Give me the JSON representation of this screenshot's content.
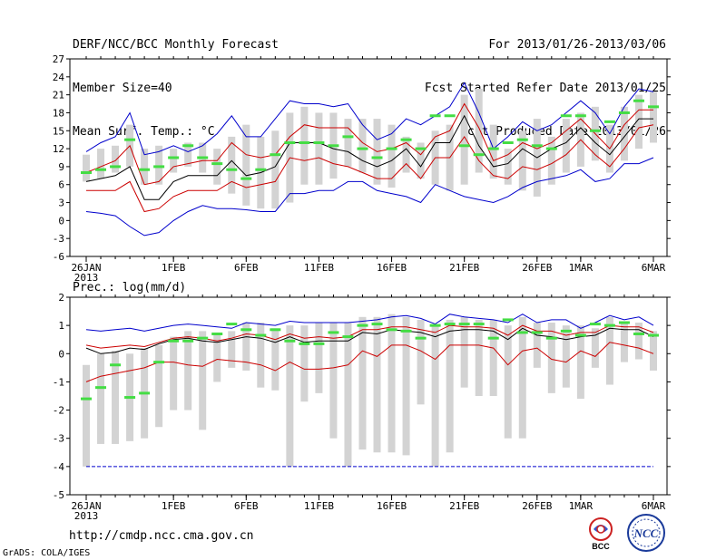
{
  "header": {
    "left_line1": "DERF/NCC/BCC Monthly Forecast",
    "left_line2": "Member Size=40",
    "left_line3": "Mean Surf. Temp.: °C",
    "right_line1": "For 2013/01/26-2013/03/06",
    "right_line2": "Fcst Started Refer Date 2013/01/25",
    "right_line3": "Fcst Produced Date 2013/01/26"
  },
  "footer": {
    "url": "http://cmdp.ncc.cma.gov.cn",
    "credit": "GrADS: COLA/IGES",
    "logo1": "BCC",
    "logo2": "NCC"
  },
  "colors": {
    "box": "#d3d3d3",
    "envelope": "#0000cc",
    "spread": "#cc0000",
    "mean": "#000000",
    "obs": "#44dd44"
  },
  "chart_data": [
    {
      "type": "ensemble-box",
      "title": "Mean Surf. Temp.: °C",
      "ylim": [
        -6,
        27
      ],
      "yticks": [
        -6,
        -3,
        0,
        3,
        6,
        9,
        12,
        15,
        18,
        21,
        24,
        27
      ],
      "xticks": [
        {
          "day": 0,
          "label": "26JAN",
          "sub": "2013"
        },
        {
          "day": 6,
          "label": "1FEB"
        },
        {
          "day": 11,
          "label": "6FEB"
        },
        {
          "day": 16,
          "label": "11FEB"
        },
        {
          "day": 21,
          "label": "16FEB"
        },
        {
          "day": 26,
          "label": "21FEB"
        },
        {
          "day": 31,
          "label": "26FEB"
        },
        {
          "day": 34,
          "label": "1MAR"
        },
        {
          "day": 39,
          "label": "6MAR"
        }
      ],
      "box_low": [
        6.5,
        7,
        8,
        9,
        6,
        6,
        8,
        9,
        8,
        6,
        4.5,
        2.5,
        2,
        2,
        3,
        6,
        6,
        7,
        9,
        8,
        6,
        5.5,
        8,
        7,
        6,
        5,
        6,
        8,
        7,
        6,
        5,
        4,
        6,
        8,
        9,
        10,
        8,
        10,
        12,
        13
      ],
      "box_high": [
        11,
        12,
        12.5,
        16,
        12,
        12.5,
        12,
        13,
        13,
        12,
        14,
        16,
        14,
        15,
        18,
        19,
        18,
        18,
        17,
        17,
        17,
        16,
        14,
        13,
        15,
        16,
        21,
        22,
        16,
        12,
        15,
        17,
        14,
        17,
        18,
        19,
        16,
        19,
        21,
        21.5
      ],
      "upper_env": [
        11.5,
        13,
        14,
        18,
        11,
        11.5,
        12.5,
        11.5,
        12.5,
        14.5,
        17.5,
        14,
        14,
        17,
        20,
        19.5,
        19.5,
        19,
        19.5,
        16,
        13.5,
        14.5,
        17,
        16,
        17.5,
        19,
        23,
        18,
        12,
        14,
        16.5,
        15,
        16,
        18,
        20,
        18,
        14.5,
        19,
        22,
        21.5
      ],
      "upper_spr": [
        8,
        9,
        10,
        12.5,
        6,
        6.5,
        9,
        9.5,
        10,
        10,
        13,
        11,
        10.5,
        11,
        14,
        16,
        15.5,
        15.5,
        15.5,
        13,
        11.5,
        12,
        13,
        11,
        14,
        15,
        19.5,
        15.5,
        10,
        11,
        13,
        12,
        13,
        15,
        17,
        14.5,
        12,
        16,
        18.5,
        18.5
      ],
      "mean": [
        6.5,
        7,
        7.5,
        9,
        3.5,
        3.5,
        6.5,
        7.5,
        7.5,
        7.5,
        10,
        7.5,
        8,
        9,
        13,
        13,
        13,
        12,
        11.5,
        10,
        9,
        10,
        12,
        9,
        13,
        13,
        17.5,
        12.5,
        9,
        9.5,
        12,
        10.5,
        12,
        13,
        15.5,
        13,
        11,
        14,
        17,
        17
      ],
      "lower_spr": [
        5,
        5,
        5,
        6.5,
        1.5,
        2,
        4,
        5,
        5,
        5,
        6.5,
        5.5,
        6,
        6.5,
        10.5,
        10,
        10.5,
        9.5,
        9,
        8,
        7,
        7,
        9.5,
        7,
        10.5,
        10.5,
        14,
        10,
        7.5,
        7,
        9,
        8.5,
        9.5,
        11,
        13.5,
        11,
        9,
        12,
        15.5,
        16
      ],
      "lower_env": [
        1.5,
        1.2,
        0.8,
        -1,
        -2.5,
        -2,
        0,
        1.5,
        2.5,
        2,
        2,
        1.8,
        1.5,
        1.5,
        4.5,
        4.5,
        5,
        5,
        6.5,
        6.5,
        5,
        4.5,
        4,
        3,
        6,
        5,
        4,
        3.5,
        3,
        4,
        5.5,
        6.5,
        7,
        7.5,
        8.5,
        6.5,
        7,
        9.5,
        9.5,
        10.5
      ],
      "obs": [
        8,
        8.5,
        9,
        13.5,
        8.5,
        9,
        10.5,
        12.5,
        10.5,
        9.5,
        8.5,
        7,
        8.5,
        11,
        13,
        13,
        13,
        12.5,
        14,
        12,
        10.5,
        12,
        13.5,
        12,
        17.5,
        17.5,
        12.5,
        11,
        12,
        13,
        13.5,
        12.5,
        12,
        17.5,
        17.5,
        15,
        16.5,
        18,
        20,
        19
      ]
    },
    {
      "type": "ensemble-box",
      "title": "Prec.: log(mm/d)",
      "ylim": [
        -5,
        2
      ],
      "yticks": [
        -5,
        -4,
        -3,
        -2,
        -1,
        0,
        1,
        2
      ],
      "xticks": [
        {
          "day": 0,
          "label": "26JAN",
          "sub": "2013"
        },
        {
          "day": 6,
          "label": "1FEB"
        },
        {
          "day": 11,
          "label": "6FEB"
        },
        {
          "day": 16,
          "label": "11FEB"
        },
        {
          "day": 21,
          "label": "16FEB"
        },
        {
          "day": 26,
          "label": "21FEB"
        },
        {
          "day": 31,
          "label": "26FEB"
        },
        {
          "day": 34,
          "label": "1MAR"
        },
        {
          "day": 39,
          "label": "6MAR"
        }
      ],
      "box_low": [
        -4,
        -3.2,
        -3.2,
        -3.1,
        -3,
        -2.6,
        -2,
        -2,
        -2.7,
        -1,
        -0.5,
        -0.6,
        -1.2,
        -1.3,
        -4,
        -1.7,
        -1.4,
        -3,
        -4,
        -3.4,
        -3.5,
        -3.5,
        -3.6,
        -1.8,
        -4,
        -3.5,
        -1.2,
        -1.5,
        -1.5,
        -3,
        -3,
        -0.5,
        -1.4,
        -1.2,
        -1.6,
        -0.5,
        -1.1,
        -0.3,
        -0.2,
        -0.6
      ],
      "box_high": [
        -0.4,
        0,
        0.1,
        0,
        0.2,
        0.3,
        0.6,
        0.8,
        0.8,
        0.7,
        0.8,
        1.1,
        1.1,
        0.9,
        1,
        1,
        1.1,
        1.1,
        1.1,
        1.3,
        1.3,
        1.4,
        1.3,
        1.2,
        1,
        1.2,
        1.3,
        1.2,
        1.2,
        1,
        1.3,
        1.1,
        1.1,
        1,
        1,
        0.9,
        1.3,
        1.1,
        1.1,
        0.8
      ],
      "upper_env": [
        0.85,
        0.8,
        0.85,
        0.9,
        0.8,
        0.9,
        1,
        1.05,
        1,
        0.95,
        0.9,
        1.1,
        1.05,
        1,
        1.15,
        1.1,
        1.1,
        1.1,
        1.1,
        1.15,
        1.2,
        1.3,
        1.35,
        1.25,
        1.05,
        1.4,
        1.3,
        1.25,
        1.2,
        1.1,
        1.4,
        1.1,
        1.2,
        1.2,
        0.9,
        1.1,
        1.35,
        1.2,
        1.3,
        1
      ],
      "upper_spr": [
        0.3,
        0.2,
        0.25,
        0.3,
        0.25,
        0.4,
        0.55,
        0.6,
        0.55,
        0.45,
        0.55,
        0.7,
        0.65,
        0.5,
        0.7,
        0.55,
        0.6,
        0.55,
        0.6,
        0.85,
        0.85,
        0.95,
        0.95,
        0.85,
        0.75,
        1,
        0.95,
        0.95,
        0.9,
        0.65,
        1,
        0.8,
        0.8,
        0.65,
        0.75,
        0.75,
        1,
        0.95,
        0.95,
        0.75
      ],
      "mean": [
        0.2,
        0,
        0.05,
        0.2,
        0.15,
        0.35,
        0.5,
        0.55,
        0.45,
        0.4,
        0.5,
        0.6,
        0.55,
        0.4,
        0.6,
        0.4,
        0.45,
        0.45,
        0.45,
        0.75,
        0.7,
        0.85,
        0.8,
        0.75,
        0.6,
        0.8,
        0.85,
        0.85,
        0.8,
        0.5,
        0.9,
        0.65,
        0.6,
        0.5,
        0.6,
        0.65,
        0.9,
        0.85,
        0.85,
        0.6
      ],
      "lower_spr": [
        -1,
        -0.8,
        -0.7,
        -0.6,
        -0.5,
        -0.3,
        -0.3,
        -0.4,
        -0.45,
        -0.2,
        -0.25,
        -0.3,
        -0.4,
        -0.6,
        -0.3,
        -0.55,
        -0.55,
        -0.5,
        -0.4,
        0.1,
        -0.1,
        0.3,
        0.3,
        0.1,
        -0.2,
        0.3,
        0.3,
        0.3,
        0.2,
        -0.4,
        0.1,
        0.2,
        -0.2,
        -0.3,
        0.1,
        -0.1,
        0.4,
        0.3,
        0.2,
        0
      ],
      "lower_env": [
        -4,
        -4,
        -4,
        -4,
        -4,
        -4,
        -4,
        -4,
        -4,
        -4,
        -4,
        -4,
        -4,
        -4,
        -4,
        -4,
        -4,
        -4,
        -4,
        -4,
        -4,
        -4,
        -4,
        -4,
        -4,
        -4,
        -4,
        -4,
        -4,
        -4,
        -4,
        -4,
        -4,
        -4,
        -4,
        -4,
        -4,
        -4,
        -4,
        -4
      ],
      "obs": [
        -1.6,
        -1.2,
        -0.4,
        -1.55,
        -1.4,
        -0.3,
        0.45,
        0.45,
        0.55,
        0.7,
        1.05,
        0.85,
        0.65,
        0.85,
        0.45,
        0.35,
        0.35,
        0.75,
        0.6,
        1,
        1.05,
        0.85,
        0.8,
        0.55,
        1,
        1.05,
        1.05,
        1.05,
        0.55,
        1.2,
        0.75,
        0.75,
        0.55,
        0.8,
        0.65,
        1.05,
        1,
        1.1,
        0.7,
        0.65
      ]
    }
  ]
}
